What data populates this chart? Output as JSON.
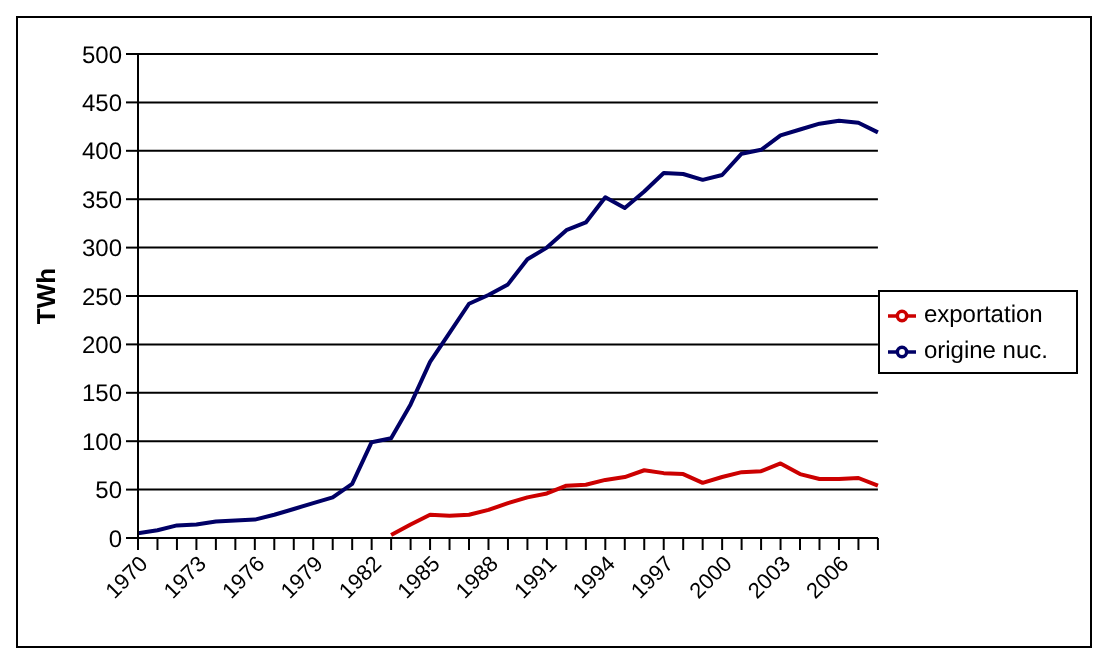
{
  "chart_data": {
    "type": "line",
    "ylabel": "TWh",
    "categories": [
      "1970",
      null,
      null,
      "1973",
      null,
      null,
      "1976",
      null,
      null,
      "1979",
      null,
      null,
      "1982",
      null,
      null,
      "1985",
      null,
      null,
      "1988",
      null,
      null,
      "1991",
      null,
      null,
      "1994",
      null,
      null,
      "1997",
      null,
      null,
      "2000",
      null,
      null,
      "2003",
      null,
      null,
      "2006",
      null,
      null
    ],
    "series": [
      {
        "name": "origine nuc.",
        "color": "#000066",
        "values": [
          5,
          8,
          13,
          14,
          17,
          18,
          19,
          24,
          30,
          36,
          42,
          56,
          99,
          103,
          138,
          182,
          212,
          242,
          251,
          262,
          288,
          300,
          318,
          326,
          352,
          341,
          358,
          377,
          376,
          370,
          375,
          397,
          401,
          416,
          422,
          428,
          431,
          429,
          419
        ]
      },
      {
        "name": "exportation",
        "color": "#cc0000",
        "values": [
          null,
          null,
          null,
          null,
          null,
          null,
          null,
          null,
          null,
          null,
          null,
          null,
          null,
          3,
          14,
          24,
          23,
          24,
          29,
          36,
          42,
          46,
          54,
          55,
          60,
          63,
          70,
          67,
          66,
          57,
          63,
          68,
          69,
          77,
          66,
          61,
          61,
          62,
          54
        ]
      }
    ],
    "ylim": [
      0,
      500
    ],
    "yticks": [
      0,
      50,
      100,
      150,
      200,
      250,
      300,
      350,
      400,
      450,
      500
    ],
    "grid": "y",
    "legend": "right",
    "line_style": "solid",
    "marker": "none"
  }
}
